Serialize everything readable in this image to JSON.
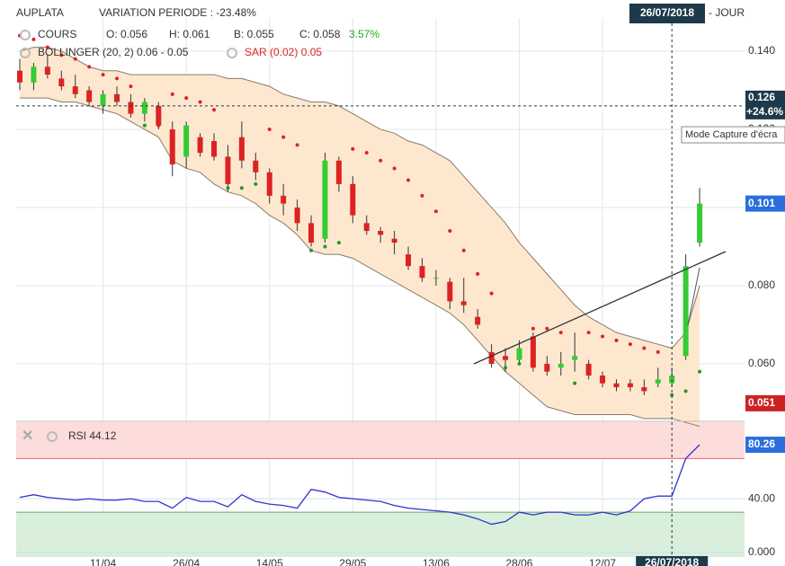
{
  "chart_data": {
    "type": "candlestick",
    "title": "AUPLATA",
    "subtitle": "VARIATION PERIODE : -23.48%",
    "period": "- JOUR",
    "header_date": "26/07/2018",
    "quote": {
      "name": "COURS",
      "open": "O: 0.056",
      "high": "H: 0.061",
      "low": "B: 0.055",
      "close": "C: 0.058",
      "change": "3.57%"
    },
    "up_color": "#33cc33",
    "down_color": "#dd2222",
    "ylim": [
      0.0455,
      0.1485
    ],
    "yticks": [
      {
        "value": 0.06,
        "label": "0.060"
      },
      {
        "value": 0.08,
        "label": "0.080"
      },
      {
        "value": 0.1,
        "label": "0.100"
      },
      {
        "value": 0.12,
        "label": "0.120"
      },
      {
        "value": 0.14,
        "label": "0.140"
      }
    ],
    "xticks": [
      {
        "value": 6,
        "label": "11/04"
      },
      {
        "value": 12,
        "label": "26/04"
      },
      {
        "value": 18,
        "label": "14/05"
      },
      {
        "value": 24,
        "label": "29/05"
      },
      {
        "value": 30,
        "label": "13/06"
      },
      {
        "value": 36,
        "label": "28/06"
      },
      {
        "value": 42,
        "label": "12/07"
      },
      {
        "value": 47,
        "label": "26/07/2018"
      }
    ],
    "grid": true,
    "open": [
      0.135,
      0.132,
      0.136,
      0.133,
      0.131,
      0.13,
      0.126,
      0.129,
      0.127,
      0.124,
      0.126,
      0.12,
      0.113,
      0.118,
      0.117,
      0.113,
      0.118,
      0.112,
      0.109,
      0.103,
      0.1,
      0.096,
      0.092,
      0.112,
      0.106,
      0.096,
      0.094,
      0.092,
      0.088,
      0.085,
      0.082,
      0.081,
      0.076,
      0.072,
      0.063,
      0.062,
      0.061,
      0.067,
      0.06,
      0.059,
      0.061,
      0.06,
      0.057,
      0.055,
      0.055,
      0.054,
      0.055,
      0.055,
      0.062,
      0.091
    ],
    "high": [
      0.138,
      0.137,
      0.139,
      0.135,
      0.134,
      0.131,
      0.13,
      0.131,
      0.129,
      0.128,
      0.127,
      0.122,
      0.122,
      0.119,
      0.119,
      0.116,
      0.122,
      0.114,
      0.11,
      0.106,
      0.102,
      0.098,
      0.114,
      0.113,
      0.108,
      0.098,
      0.095,
      0.094,
      0.09,
      0.087,
      0.084,
      0.082,
      0.082,
      0.074,
      0.065,
      0.064,
      0.066,
      0.068,
      0.062,
      0.063,
      0.068,
      0.061,
      0.058,
      0.056,
      0.056,
      0.056,
      0.059,
      0.059,
      0.088,
      0.105
    ],
    "low": [
      0.13,
      0.13,
      0.133,
      0.13,
      0.128,
      0.126,
      0.124,
      0.126,
      0.123,
      0.122,
      0.12,
      0.108,
      0.11,
      0.113,
      0.112,
      0.104,
      0.11,
      0.107,
      0.101,
      0.098,
      0.094,
      0.09,
      0.091,
      0.104,
      0.096,
      0.093,
      0.091,
      0.088,
      0.084,
      0.081,
      0.08,
      0.074,
      0.073,
      0.069,
      0.059,
      0.058,
      0.06,
      0.058,
      0.057,
      0.057,
      0.058,
      0.056,
      0.054,
      0.053,
      0.053,
      0.052,
      0.054,
      0.054,
      0.061,
      0.09
    ],
    "close": [
      0.132,
      0.136,
      0.134,
      0.131,
      0.129,
      0.127,
      0.129,
      0.127,
      0.124,
      0.127,
      0.121,
      0.111,
      0.121,
      0.114,
      0.113,
      0.106,
      0.112,
      0.109,
      0.103,
      0.101,
      0.096,
      0.091,
      0.112,
      0.106,
      0.098,
      0.094,
      0.093,
      0.091,
      0.085,
      0.082,
      0.082,
      0.076,
      0.075,
      0.07,
      0.06,
      0.061,
      0.064,
      0.059,
      0.058,
      0.06,
      0.062,
      0.057,
      0.055,
      0.054,
      0.054,
      0.053,
      0.056,
      0.057,
      0.085,
      0.101
    ],
    "bollinger": {
      "name": "BOLLINGER (20, 2) 0.06 - 0.05",
      "color": "#8a7a6a",
      "fill": "#fde8cf",
      "upper": [
        0.14,
        0.141,
        0.141,
        0.14,
        0.138,
        0.136,
        0.135,
        0.135,
        0.134,
        0.134,
        0.134,
        0.134,
        0.134,
        0.134,
        0.134,
        0.133,
        0.133,
        0.132,
        0.131,
        0.129,
        0.128,
        0.127,
        0.127,
        0.126,
        0.124,
        0.122,
        0.12,
        0.119,
        0.117,
        0.116,
        0.114,
        0.112,
        0.108,
        0.104,
        0.1,
        0.096,
        0.091,
        0.087,
        0.083,
        0.079,
        0.075,
        0.072,
        0.07,
        0.068,
        0.067,
        0.066,
        0.065,
        0.064,
        0.068,
        0.08
      ],
      "lower": [
        0.128,
        0.128,
        0.128,
        0.127,
        0.127,
        0.126,
        0.125,
        0.124,
        0.122,
        0.12,
        0.118,
        0.112,
        0.11,
        0.109,
        0.106,
        0.104,
        0.103,
        0.101,
        0.098,
        0.096,
        0.093,
        0.089,
        0.088,
        0.088,
        0.087,
        0.085,
        0.083,
        0.081,
        0.079,
        0.077,
        0.075,
        0.073,
        0.07,
        0.066,
        0.062,
        0.058,
        0.055,
        0.052,
        0.049,
        0.048,
        0.047,
        0.047,
        0.047,
        0.047,
        0.047,
        0.046,
        0.046,
        0.046,
        0.045,
        0.044
      ]
    },
    "sar": {
      "name": "SAR (0.02) 0.05",
      "up_color": "#229922",
      "down_color": "#dd2222",
      "values": [
        0.144,
        0.143,
        0.141,
        0.139,
        0.138,
        0.136,
        0.134,
        0.133,
        0.131,
        0.121,
        0.121,
        0.129,
        0.128,
        0.127,
        0.125,
        0.105,
        0.105,
        0.106,
        0.12,
        0.118,
        0.116,
        0.089,
        0.09,
        0.091,
        0.115,
        0.114,
        0.112,
        0.11,
        0.107,
        0.103,
        0.099,
        0.094,
        0.089,
        0.083,
        0.078,
        0.059,
        0.06,
        0.069,
        0.069,
        0.068,
        0.055,
        0.068,
        0.067,
        0.066,
        0.065,
        0.064,
        0.063,
        0.052,
        0.053,
        0.058
      ]
    },
    "cursor": {
      "value": 0.126,
      "label": "0.126",
      "change": "+24.6%",
      "tooltip": "Mode Capture d'écra"
    },
    "low_label": "0.051",
    "rsi": {
      "name": "RSI 44.12",
      "color": "#3333cc",
      "ylim": [
        -3.4,
        97
      ],
      "yticks": [
        {
          "value": 0,
          "label": "0.000"
        },
        {
          "value": 40,
          "label": "40.00"
        }
      ],
      "levels": [
        30,
        70
      ],
      "values": [
        41,
        43,
        41,
        40,
        39,
        40,
        39,
        39,
        40,
        38,
        38,
        33,
        41,
        38,
        38,
        34,
        43,
        38,
        36,
        35,
        33,
        47,
        45,
        41,
        40,
        39,
        38,
        35,
        33,
        32,
        31,
        30,
        28,
        25,
        21,
        23,
        30,
        28,
        30,
        30,
        28,
        28,
        30,
        28,
        31,
        40,
        42,
        42,
        70,
        80.26
      ]
    }
  }
}
